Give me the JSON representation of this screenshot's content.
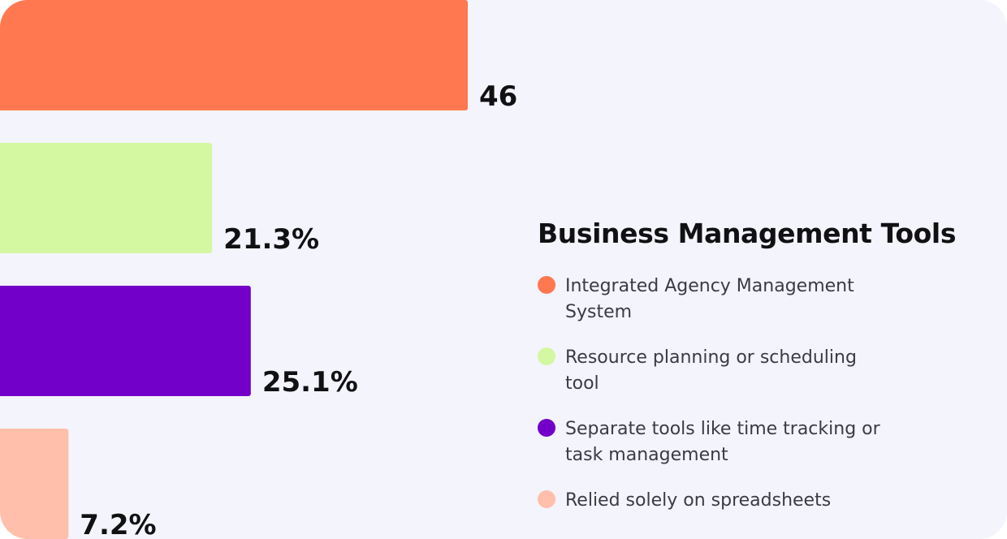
{
  "chart_data": {
    "type": "bar",
    "orientation": "horizontal",
    "title": "Business Management Tools",
    "categories": [
      "Integrated Agency Management System",
      "Resource planning or scheduling tool",
      "Separate tools like time tracking or task management",
      "Relied solely on spreadsheets"
    ],
    "values": [
      46.4,
      21.3,
      25.1,
      7.2
    ],
    "value_labels": [
      "46.4%",
      "21.3%",
      "25.1%",
      "7.2%"
    ],
    "colors": [
      "#ff784f",
      "#d4f7a2",
      "#7300c8",
      "#ffbfaa"
    ],
    "xlim": [
      0,
      50
    ],
    "grid": false,
    "legend_position": "right"
  }
}
